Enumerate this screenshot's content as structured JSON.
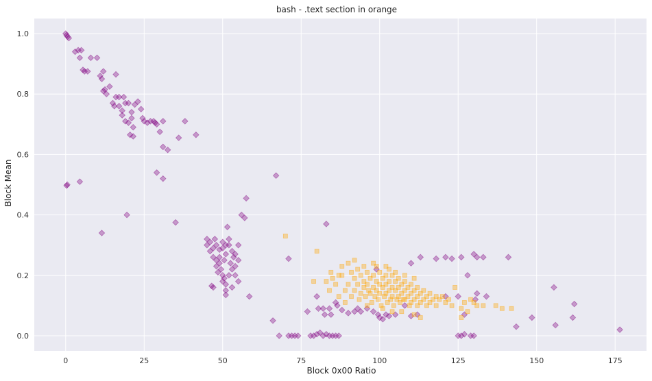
{
  "chart_data": {
    "type": "scatter",
    "title": "bash - .text section in orange",
    "xlabel": "Block 0x00 Ratio",
    "ylabel": "Block Mean",
    "xlim": [
      -10,
      185
    ],
    "ylim": [
      -0.05,
      1.05
    ],
    "xticks": [
      0,
      25,
      50,
      75,
      100,
      125,
      150,
      175
    ],
    "yticks": [
      0.0,
      0.2,
      0.4,
      0.6,
      0.8,
      1.0
    ],
    "xtick_labels": [
      "0",
      "25",
      "50",
      "75",
      "100",
      "125",
      "150",
      "175"
    ],
    "ytick_labels": [
      "0.0",
      "0.2",
      "0.4",
      "0.6",
      "0.8",
      "1.0"
    ],
    "grid": true,
    "background": "#eaeaf2",
    "series": [
      {
        "marker": "diamond",
        "color": "#800080",
        "alpha": 0.35,
        "points": [
          [
            0,
            1.0
          ],
          [
            0.3,
            0.995
          ],
          [
            0.6,
            0.99
          ],
          [
            1,
            0.985
          ],
          [
            0.5,
            0.5
          ],
          [
            0.3,
            0.497
          ],
          [
            3,
            0.94
          ],
          [
            4,
            0.945
          ],
          [
            5,
            0.945
          ],
          [
            4.5,
            0.92
          ],
          [
            5.5,
            0.88
          ],
          [
            6,
            0.875
          ],
          [
            7,
            0.875
          ],
          [
            8,
            0.92
          ],
          [
            10,
            0.92
          ],
          [
            11,
            0.86
          ],
          [
            12,
            0.875
          ],
          [
            11.5,
            0.85
          ],
          [
            12,
            0.81
          ],
          [
            12.5,
            0.815
          ],
          [
            13,
            0.8
          ],
          [
            14,
            0.825
          ],
          [
            15,
            0.77
          ],
          [
            15.5,
            0.76
          ],
          [
            16,
            0.865
          ],
          [
            16,
            0.79
          ],
          [
            17,
            0.79
          ],
          [
            17,
            0.76
          ],
          [
            18,
            0.745
          ],
          [
            18,
            0.73
          ],
          [
            18.5,
            0.79
          ],
          [
            19,
            0.77
          ],
          [
            19,
            0.71
          ],
          [
            20,
            0.705
          ],
          [
            20,
            0.77
          ],
          [
            21,
            0.74
          ],
          [
            21,
            0.72
          ],
          [
            21.5,
            0.69
          ],
          [
            22,
            0.765
          ],
          [
            23,
            0.775
          ],
          [
            20.5,
            0.665
          ],
          [
            21.5,
            0.66
          ],
          [
            24,
            0.75
          ],
          [
            24.5,
            0.72
          ],
          [
            25,
            0.71
          ],
          [
            26,
            0.705
          ],
          [
            27,
            0.71
          ],
          [
            28,
            0.71
          ],
          [
            28.5,
            0.705
          ],
          [
            29,
            0.7
          ],
          [
            30,
            0.675
          ],
          [
            31,
            0.71
          ],
          [
            31,
            0.625
          ],
          [
            32.5,
            0.615
          ],
          [
            29,
            0.54
          ],
          [
            31,
            0.52
          ],
          [
            36,
            0.655
          ],
          [
            38,
            0.71
          ],
          [
            41.5,
            0.665
          ],
          [
            35,
            0.375
          ],
          [
            19.5,
            0.4
          ],
          [
            11.5,
            0.34
          ],
          [
            4.5,
            0.51
          ],
          [
            45,
            0.32
          ],
          [
            45,
            0.3
          ],
          [
            46,
            0.31
          ],
          [
            46,
            0.28
          ],
          [
            47,
            0.29
          ],
          [
            47,
            0.26
          ],
          [
            47.5,
            0.32
          ],
          [
            48,
            0.3
          ],
          [
            48,
            0.25
          ],
          [
            48,
            0.23
          ],
          [
            49,
            0.285
          ],
          [
            49,
            0.26
          ],
          [
            49.5,
            0.22
          ],
          [
            50,
            0.29
          ],
          [
            50,
            0.2
          ],
          [
            50,
            0.18
          ],
          [
            50.5,
            0.25
          ],
          [
            51,
            0.3
          ],
          [
            51,
            0.27
          ],
          [
            51,
            0.17
          ],
          [
            51,
            0.15
          ],
          [
            51.5,
            0.36
          ],
          [
            52,
            0.3
          ],
          [
            52,
            0.2
          ],
          [
            52.5,
            0.24
          ],
          [
            53,
            0.28
          ],
          [
            53,
            0.22
          ],
          [
            53.5,
            0.26
          ],
          [
            54,
            0.23
          ],
          [
            54,
            0.2
          ],
          [
            55,
            0.25
          ],
          [
            55,
            0.3
          ],
          [
            55,
            0.18
          ],
          [
            56,
            0.4
          ],
          [
            57,
            0.39
          ],
          [
            57.5,
            0.455
          ],
          [
            58.5,
            0.13
          ],
          [
            47,
            0.16
          ],
          [
            46.5,
            0.165
          ],
          [
            51,
            0.135
          ],
          [
            52,
            0.32
          ],
          [
            50,
            0.31
          ],
          [
            49,
            0.24
          ],
          [
            48.5,
            0.21
          ],
          [
            54,
            0.27
          ],
          [
            53,
            0.16
          ],
          [
            50.5,
            0.19
          ],
          [
            67,
            0.53
          ],
          [
            66,
            0.05
          ],
          [
            68,
            0.0
          ],
          [
            71,
            0.0
          ],
          [
            73,
            0.0
          ],
          [
            74,
            0.0
          ],
          [
            72,
            0.0
          ],
          [
            71,
            0.255
          ],
          [
            77,
            0.08
          ],
          [
            78,
            0.0
          ],
          [
            79,
            0.0
          ],
          [
            80,
            0.005
          ],
          [
            81,
            0.01
          ],
          [
            82,
            0.0
          ],
          [
            83,
            0.005
          ],
          [
            84,
            0.0
          ],
          [
            85,
            0.0
          ],
          [
            86,
            0.0
          ],
          [
            87,
            0.0
          ],
          [
            83,
            0.37
          ],
          [
            80,
            0.13
          ],
          [
            80.5,
            0.09
          ],
          [
            82,
            0.09
          ],
          [
            82.5,
            0.07
          ],
          [
            84,
            0.09
          ],
          [
            84.5,
            0.07
          ],
          [
            86,
            0.11
          ],
          [
            86.5,
            0.1
          ],
          [
            88,
            0.085
          ],
          [
            90,
            0.075
          ],
          [
            92,
            0.08
          ],
          [
            93,
            0.09
          ],
          [
            94,
            0.08
          ],
          [
            96,
            0.09
          ],
          [
            98,
            0.08
          ],
          [
            99,
            0.22
          ],
          [
            99.5,
            0.07
          ],
          [
            100,
            0.06
          ],
          [
            101,
            0.055
          ],
          [
            102,
            0.07
          ],
          [
            103,
            0.065
          ],
          [
            105,
            0.07
          ],
          [
            108,
            0.1
          ],
          [
            110,
            0.065
          ],
          [
            112,
            0.07
          ],
          [
            110,
            0.24
          ],
          [
            113,
            0.26
          ],
          [
            118,
            0.255
          ],
          [
            121,
            0.26
          ],
          [
            123,
            0.255
          ],
          [
            126,
            0.26
          ],
          [
            121,
            0.13
          ],
          [
            125,
            0.13
          ],
          [
            125,
            0.0
          ],
          [
            126,
            0.0
          ],
          [
            127,
            0.005
          ],
          [
            128,
            0.2
          ],
          [
            129,
            0.0
          ],
          [
            130,
            0.0
          ],
          [
            130,
            0.27
          ],
          [
            131,
            0.26
          ],
          [
            133,
            0.26
          ],
          [
            134,
            0.13
          ],
          [
            131,
            0.14
          ],
          [
            127,
            0.07
          ],
          [
            141,
            0.26
          ],
          [
            143.5,
            0.03
          ],
          [
            148.5,
            0.06
          ],
          [
            155.5,
            0.16
          ],
          [
            156,
            0.035
          ],
          [
            161.5,
            0.06
          ],
          [
            162,
            0.105
          ],
          [
            176.5,
            0.02
          ],
          [
            130.5,
            0.12
          ]
        ]
      },
      {
        "marker": "square",
        "color": "#ffa500",
        "alpha": 0.35,
        "points": [
          [
            70,
            0.33
          ],
          [
            80,
            0.28
          ],
          [
            79,
            0.18
          ],
          [
            83,
            0.18
          ],
          [
            84,
            0.15
          ],
          [
            84.5,
            0.21
          ],
          [
            86,
            0.17
          ],
          [
            87,
            0.13
          ],
          [
            88,
            0.23
          ],
          [
            88,
            0.2
          ],
          [
            89,
            0.11
          ],
          [
            89,
            0.15
          ],
          [
            90,
            0.24
          ],
          [
            90,
            0.17
          ],
          [
            91,
            0.21
          ],
          [
            91,
            0.13
          ],
          [
            92,
            0.19
          ],
          [
            92,
            0.15
          ],
          [
            93,
            0.22
          ],
          [
            93,
            0.17
          ],
          [
            93.5,
            0.12
          ],
          [
            94,
            0.2
          ],
          [
            94,
            0.14
          ],
          [
            95,
            0.18
          ],
          [
            95,
            0.16
          ],
          [
            95.5,
            0.13
          ],
          [
            96,
            0.21
          ],
          [
            96,
            0.17
          ],
          [
            96.5,
            0.15
          ],
          [
            97,
            0.19
          ],
          [
            97,
            0.14
          ],
          [
            97.5,
            0.11
          ],
          [
            98,
            0.2
          ],
          [
            98,
            0.16
          ],
          [
            98.5,
            0.13
          ],
          [
            99,
            0.18
          ],
          [
            99,
            0.15
          ],
          [
            99.5,
            0.12
          ],
          [
            100,
            0.21
          ],
          [
            100,
            0.17
          ],
          [
            100,
            0.14
          ],
          [
            100.5,
            0.1
          ],
          [
            101,
            0.19
          ],
          [
            101,
            0.16
          ],
          [
            101.5,
            0.13
          ],
          [
            102,
            0.2
          ],
          [
            102,
            0.17
          ],
          [
            102,
            0.14
          ],
          [
            102.5,
            0.11
          ],
          [
            103,
            0.18
          ],
          [
            103,
            0.15
          ],
          [
            103.5,
            0.12
          ],
          [
            104,
            0.2
          ],
          [
            104,
            0.16
          ],
          [
            104,
            0.13
          ],
          [
            104.5,
            0.1
          ],
          [
            105,
            0.18
          ],
          [
            105,
            0.15
          ],
          [
            105.5,
            0.12
          ],
          [
            106,
            0.19
          ],
          [
            106,
            0.16
          ],
          [
            106,
            0.13
          ],
          [
            106.5,
            0.11
          ],
          [
            107,
            0.17
          ],
          [
            107,
            0.14
          ],
          [
            107.5,
            0.12
          ],
          [
            108,
            0.18
          ],
          [
            108,
            0.15
          ],
          [
            108,
            0.12
          ],
          [
            109,
            0.16
          ],
          [
            109,
            0.13
          ],
          [
            109.5,
            0.1
          ],
          [
            110,
            0.17
          ],
          [
            110,
            0.14
          ],
          [
            110,
            0.11
          ],
          [
            111,
            0.15
          ],
          [
            111,
            0.12
          ],
          [
            112,
            0.16
          ],
          [
            112,
            0.13
          ],
          [
            112,
            0.1
          ],
          [
            113,
            0.14
          ],
          [
            113,
            0.11
          ],
          [
            114,
            0.15
          ],
          [
            114,
            0.12
          ],
          [
            115,
            0.13
          ],
          [
            115,
            0.1
          ],
          [
            116,
            0.14
          ],
          [
            116,
            0.11
          ],
          [
            117,
            0.12
          ],
          [
            118,
            0.13
          ],
          [
            118,
            0.1
          ],
          [
            119,
            0.12
          ],
          [
            120,
            0.13
          ],
          [
            121,
            0.11
          ],
          [
            122,
            0.12
          ],
          [
            123,
            0.1
          ],
          [
            124,
            0.16
          ],
          [
            126,
            0.09
          ],
          [
            127,
            0.11
          ],
          [
            128,
            0.08
          ],
          [
            129,
            0.12
          ],
          [
            130,
            0.11
          ],
          [
            131,
            0.1
          ],
          [
            133,
            0.1
          ],
          [
            137,
            0.1
          ],
          [
            139,
            0.09
          ],
          [
            142,
            0.09
          ],
          [
            126,
            0.06
          ],
          [
            95,
            0.23
          ],
          [
            99,
            0.23
          ],
          [
            103,
            0.22
          ],
          [
            105,
            0.21
          ],
          [
            108,
            0.2
          ],
          [
            111,
            0.19
          ],
          [
            96,
            0.1
          ],
          [
            101,
            0.09
          ],
          [
            104,
            0.08
          ],
          [
            107,
            0.08
          ],
          [
            111,
            0.07
          ],
          [
            113,
            0.06
          ],
          [
            92,
            0.25
          ],
          [
            98,
            0.24
          ],
          [
            102,
            0.23
          ],
          [
            87,
            0.2
          ],
          [
            85,
            0.19
          ]
        ]
      }
    ]
  }
}
